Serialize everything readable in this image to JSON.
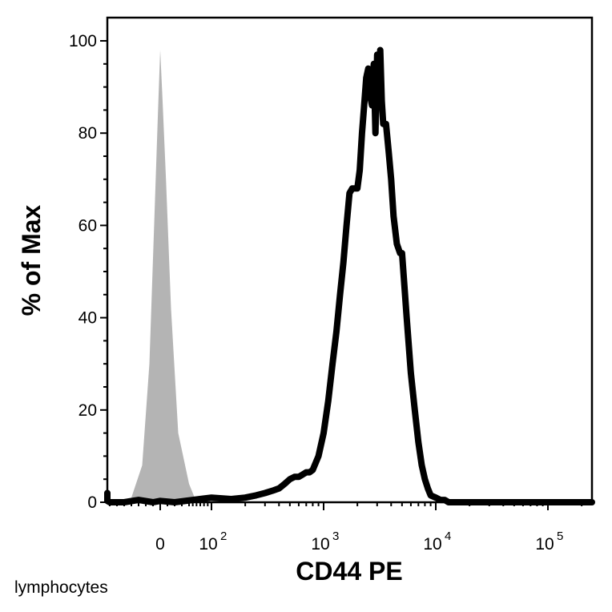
{
  "chart_data": {
    "type": "area",
    "title": "",
    "xlabel": "CD44 PE",
    "ylabel": "% of Max",
    "x_scale": "biexponential",
    "x_ticks": [
      {
        "value": 0,
        "base": "0",
        "exp": ""
      },
      {
        "value": 100,
        "base": "10",
        "exp": "2"
      },
      {
        "value": 1000,
        "base": "10",
        "exp": "3"
      },
      {
        "value": 10000,
        "base": "10",
        "exp": "4"
      },
      {
        "value": 100000,
        "base": "10",
        "exp": "5"
      }
    ],
    "y_ticks": [
      0,
      20,
      40,
      60,
      80,
      100
    ],
    "ylim": [
      0,
      100
    ],
    "grid": false,
    "legend": "none",
    "series": [
      {
        "style": "filled-gray",
        "color": "#b4b4b4",
        "x": [
          -70,
          -40,
          -25,
          -15,
          -8,
          -3,
          0,
          3,
          8,
          15,
          25,
          40,
          55,
          70
        ],
        "y": [
          0,
          1,
          8,
          30,
          62,
          85,
          98,
          88,
          70,
          42,
          15,
          4,
          1,
          0
        ]
      },
      {
        "style": "black-outline",
        "color": "#000000",
        "x": [
          -150,
          -140,
          -130,
          -110,
          -90,
          -70,
          -50,
          -30,
          -10,
          0,
          20,
          50,
          100,
          150,
          200,
          250,
          300,
          350,
          400,
          450,
          500,
          550,
          600,
          650,
          700,
          750,
          800,
          900,
          1000,
          1100,
          1200,
          1300,
          1400,
          1500,
          1600,
          1700,
          1800,
          1900,
          2000,
          2100,
          2200,
          2300,
          2400,
          2500,
          2600,
          2700,
          2800,
          2900,
          3000,
          3100,
          3200,
          3300,
          3400,
          3600,
          3800,
          4000,
          4200,
          4500,
          4800,
          5000,
          5500,
          6000,
          6500,
          7000,
          7500,
          8000,
          8500,
          9000,
          10000,
          11000,
          12000,
          13000,
          15000,
          20000,
          30000,
          50000,
          100000,
          200000,
          300000
        ],
        "y": [
          2,
          1.5,
          1,
          0.5,
          0.3,
          0,
          0,
          0.5,
          0,
          0.3,
          0,
          0.5,
          1,
          0.7,
          1,
          1.5,
          2,
          2.5,
          3,
          4,
          5,
          5.5,
          5.5,
          6,
          6.5,
          6.5,
          7,
          10,
          15,
          22,
          30,
          37,
          45,
          52,
          60,
          67,
          68,
          68,
          68,
          72,
          80,
          86,
          92,
          94,
          88,
          86,
          95,
          80,
          97,
          90,
          98,
          87,
          82,
          82,
          76,
          70,
          62,
          56,
          54,
          54,
          40,
          28,
          20,
          13,
          8,
          5,
          3,
          1.5,
          1,
          0.5,
          0.5,
          0,
          0,
          0,
          0,
          0,
          0,
          0,
          0
        ]
      }
    ]
  },
  "footer": {
    "label": "lymphocytes"
  }
}
